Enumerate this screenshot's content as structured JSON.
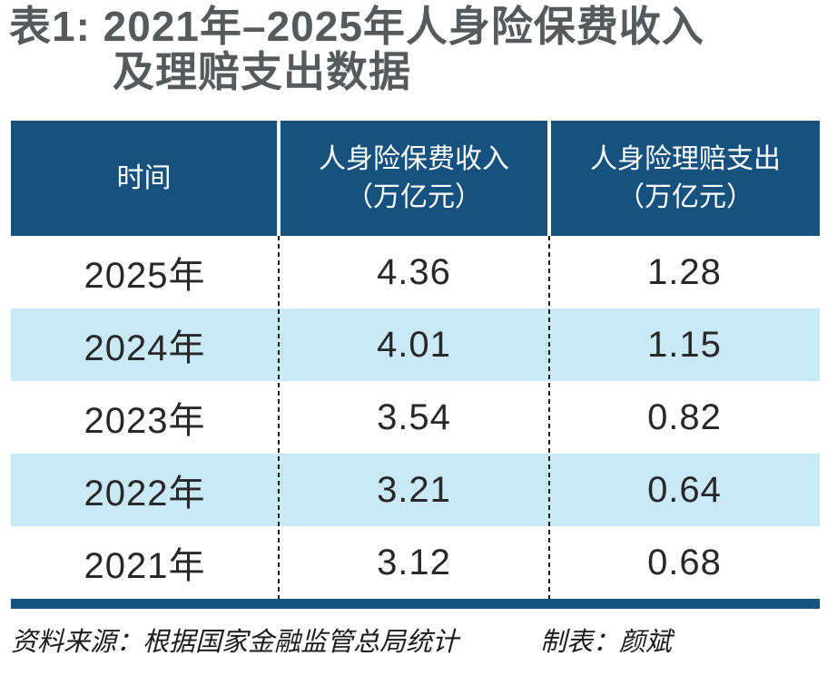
{
  "title": {
    "line1": "表1: 2021年–2025年人身险保费收入",
    "line2": "及理赔支出数据"
  },
  "table": {
    "header": {
      "time": "时间",
      "premium_line1": "人身险保费收入",
      "premium_line2": "（万亿元）",
      "claims_line1": "人身险理赔支出",
      "claims_line2": "（万亿元）"
    },
    "rows": [
      {
        "year": "2025年",
        "premium": "4.36",
        "claims": "1.28"
      },
      {
        "year": "2024年",
        "premium": "4.01",
        "claims": "1.15"
      },
      {
        "year": "2023年",
        "premium": "3.54",
        "claims": "0.82"
      },
      {
        "year": "2022年",
        "premium": "3.21",
        "claims": "0.64"
      },
      {
        "year": "2021年",
        "premium": "3.12",
        "claims": "0.68"
      }
    ]
  },
  "footer": {
    "source": "资料来源：根据国家金融监管总局统计",
    "credit": "制表：颜斌"
  },
  "colors": {
    "header_bg": "#17517E",
    "alt_row_bg": "#C9E8F8",
    "title_text": "#58595B",
    "bottom_rule": "#17517E",
    "header_text": "#FFFFFF"
  },
  "chart_data": {
    "type": "table",
    "title": "表1: 2021年–2025年人身险保费收入及理赔支出数据",
    "categories": [
      "2025年",
      "2024年",
      "2023年",
      "2022年",
      "2021年"
    ],
    "series": [
      {
        "name": "人身险保费收入（万亿元）",
        "values": [
          4.36,
          4.01,
          3.54,
          3.21,
          3.12
        ]
      },
      {
        "name": "人身险理赔支出（万亿元）",
        "values": [
          1.28,
          1.15,
          0.82,
          0.64,
          0.68
        ]
      }
    ],
    "source": "资料来源：根据国家金融监管总局统计",
    "credit": "制表：颜斌"
  }
}
